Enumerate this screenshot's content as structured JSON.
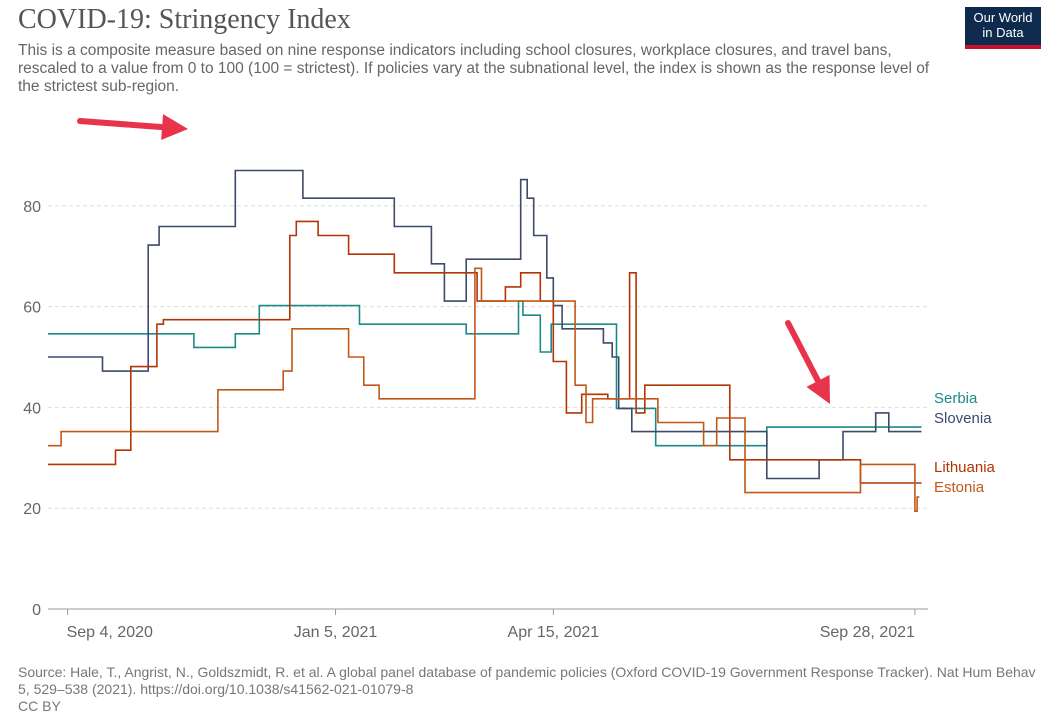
{
  "header": {
    "title": "COVID-19: Stringency Index",
    "subtitle": "This is a composite measure based on nine response indicators including school closures, workplace closures, and travel bans, rescaled to a value from 0 to 100 (100 = strictest). If policies vary at the subnational level, the index is shown as the response level of the strictest sub-region.",
    "logo_line1": "Our World",
    "logo_line2": "in Data"
  },
  "footer": {
    "source": "Source: Hale, T., Angrist, N., Goldszmidt, R. et al. A global panel database of pandemic policies (Oxford COVID-19 Government Response Tracker). Nat Hum Behav 5, 529–538 (2021). https://doi.org/10.1038/s41562-021-01079-8",
    "license": "CC BY"
  },
  "chart_data": {
    "type": "line",
    "title": "COVID-19: Stringency Index",
    "xlabel": "",
    "ylabel": "",
    "x_range": [
      "2020-08-26",
      "2021-10-04"
    ],
    "ylim": [
      0,
      100
    ],
    "y_ticks": [
      0,
      20,
      40,
      60,
      80
    ],
    "x_ticks": [
      {
        "date": "2020-09-04",
        "label": "Sep 4, 2020"
      },
      {
        "date": "2021-01-05",
        "label": "Jan 5, 2021"
      },
      {
        "date": "2021-04-15",
        "label": "Apr 15, 2021"
      },
      {
        "date": "2021-09-28",
        "label": "Sep 28, 2021"
      }
    ],
    "grid": true,
    "legend": "right, labels at line ends",
    "series": [
      {
        "name": "Serbia",
        "color": "#1c8a86",
        "points": [
          [
            "2020-08-26",
            54.6
          ],
          [
            "2020-11-01",
            54.6
          ],
          [
            "2020-11-01",
            51.9
          ],
          [
            "2020-11-20",
            51.9
          ],
          [
            "2020-11-20",
            54.6
          ],
          [
            "2020-12-01",
            54.6
          ],
          [
            "2020-12-01",
            60.2
          ],
          [
            "2021-01-16",
            60.2
          ],
          [
            "2021-01-16",
            56.5
          ],
          [
            "2021-03-06",
            56.5
          ],
          [
            "2021-03-06",
            54.6
          ],
          [
            "2021-03-30",
            54.6
          ],
          [
            "2021-03-30",
            61.1
          ],
          [
            "2021-04-01",
            61.1
          ],
          [
            "2021-04-01",
            58.3
          ],
          [
            "2021-04-09",
            58.3
          ],
          [
            "2021-04-09",
            51.0
          ],
          [
            "2021-04-14",
            51.0
          ],
          [
            "2021-04-14",
            56.5
          ],
          [
            "2021-05-14",
            56.5
          ],
          [
            "2021-05-14",
            39.8
          ],
          [
            "2021-06-01",
            39.8
          ],
          [
            "2021-06-01",
            32.4
          ],
          [
            "2021-07-22",
            32.4
          ],
          [
            "2021-07-22",
            36.1
          ],
          [
            "2021-10-01",
            36.1
          ]
        ]
      },
      {
        "name": "Slovenia",
        "color": "#3f4a6b",
        "points": [
          [
            "2020-08-26",
            50.0
          ],
          [
            "2020-09-20",
            50.0
          ],
          [
            "2020-09-20",
            47.2
          ],
          [
            "2020-10-11",
            47.2
          ],
          [
            "2020-10-11",
            72.2
          ],
          [
            "2020-10-16",
            72.2
          ],
          [
            "2020-10-16",
            75.9
          ],
          [
            "2020-11-20",
            75.9
          ],
          [
            "2020-11-20",
            87.0
          ],
          [
            "2020-12-21",
            87.0
          ],
          [
            "2020-12-21",
            81.5
          ],
          [
            "2021-02-01",
            81.5
          ],
          [
            "2021-02-01",
            75.9
          ],
          [
            "2021-02-18",
            75.9
          ],
          [
            "2021-02-18",
            68.5
          ],
          [
            "2021-02-24",
            68.5
          ],
          [
            "2021-02-24",
            61.1
          ],
          [
            "2021-03-06",
            61.1
          ],
          [
            "2021-03-06",
            69.4
          ],
          [
            "2021-03-31",
            69.4
          ],
          [
            "2021-03-31",
            85.2
          ],
          [
            "2021-04-03",
            85.2
          ],
          [
            "2021-04-03",
            81.5
          ],
          [
            "2021-04-06",
            81.5
          ],
          [
            "2021-04-06",
            74.1
          ],
          [
            "2021-04-12",
            74.1
          ],
          [
            "2021-04-12",
            65.7
          ],
          [
            "2021-04-15",
            65.7
          ],
          [
            "2021-04-15",
            60.2
          ],
          [
            "2021-04-19",
            60.2
          ],
          [
            "2021-04-19",
            55.6
          ],
          [
            "2021-05-08",
            55.6
          ],
          [
            "2021-05-08",
            52.8
          ],
          [
            "2021-05-12",
            52.8
          ],
          [
            "2021-05-12",
            50.0
          ],
          [
            "2021-05-15",
            50.0
          ],
          [
            "2021-05-15",
            39.8
          ],
          [
            "2021-05-21",
            39.8
          ],
          [
            "2021-05-21",
            35.2
          ],
          [
            "2021-07-22",
            35.2
          ],
          [
            "2021-07-22",
            25.9
          ],
          [
            "2021-08-15",
            25.9
          ],
          [
            "2021-08-15",
            29.6
          ],
          [
            "2021-08-26",
            29.6
          ],
          [
            "2021-08-26",
            35.2
          ],
          [
            "2021-09-10",
            35.2
          ],
          [
            "2021-09-10",
            38.9
          ],
          [
            "2021-09-16",
            38.9
          ],
          [
            "2021-09-16",
            35.2
          ],
          [
            "2021-10-01",
            35.2
          ]
        ]
      },
      {
        "name": "Lithuania",
        "color": "#b13507",
        "points": [
          [
            "2020-08-26",
            28.7
          ],
          [
            "2020-09-26",
            28.7
          ],
          [
            "2020-09-26",
            31.5
          ],
          [
            "2020-10-03",
            31.5
          ],
          [
            "2020-10-03",
            48.1
          ],
          [
            "2020-10-15",
            48.1
          ],
          [
            "2020-10-15",
            56.5
          ],
          [
            "2020-10-18",
            56.5
          ],
          [
            "2020-10-18",
            57.4
          ],
          [
            "2020-12-15",
            57.4
          ],
          [
            "2020-12-15",
            74.1
          ],
          [
            "2020-12-18",
            74.1
          ],
          [
            "2020-12-18",
            76.9
          ],
          [
            "2020-12-28",
            76.9
          ],
          [
            "2020-12-28",
            74.1
          ],
          [
            "2021-01-11",
            74.1
          ],
          [
            "2021-01-11",
            70.4
          ],
          [
            "2021-02-01",
            70.4
          ],
          [
            "2021-02-01",
            66.7
          ],
          [
            "2021-03-11",
            66.7
          ],
          [
            "2021-03-11",
            61.1
          ],
          [
            "2021-03-24",
            61.1
          ],
          [
            "2021-03-24",
            63.9
          ],
          [
            "2021-03-31",
            63.9
          ],
          [
            "2021-03-31",
            66.7
          ],
          [
            "2021-04-09",
            66.7
          ],
          [
            "2021-04-09",
            61.1
          ],
          [
            "2021-04-15",
            61.1
          ],
          [
            "2021-04-15",
            49.1
          ],
          [
            "2021-04-21",
            49.1
          ],
          [
            "2021-04-21",
            38.9
          ],
          [
            "2021-04-28",
            38.9
          ],
          [
            "2021-04-28",
            42.6
          ],
          [
            "2021-05-10",
            42.6
          ],
          [
            "2021-05-10",
            41.7
          ],
          [
            "2021-05-20",
            41.7
          ],
          [
            "2021-05-20",
            66.7
          ],
          [
            "2021-05-23",
            66.7
          ],
          [
            "2021-05-23",
            38.9
          ],
          [
            "2021-05-27",
            38.9
          ],
          [
            "2021-05-27",
            44.4
          ],
          [
            "2021-07-05",
            44.4
          ],
          [
            "2021-07-05",
            29.6
          ],
          [
            "2021-09-03",
            29.6
          ],
          [
            "2021-09-03",
            25.0
          ],
          [
            "2021-10-01",
            25.0
          ]
        ]
      },
      {
        "name": "Estonia",
        "color": "#c05917",
        "points": [
          [
            "2020-08-26",
            32.4
          ],
          [
            "2020-09-01",
            32.4
          ],
          [
            "2020-09-01",
            35.2
          ],
          [
            "2020-11-12",
            35.2
          ],
          [
            "2020-11-12",
            43.5
          ],
          [
            "2020-12-12",
            43.5
          ],
          [
            "2020-12-12",
            47.2
          ],
          [
            "2020-12-16",
            47.2
          ],
          [
            "2020-12-16",
            55.6
          ],
          [
            "2021-01-11",
            55.6
          ],
          [
            "2021-01-11",
            50.0
          ],
          [
            "2021-01-18",
            50.0
          ],
          [
            "2021-01-18",
            44.4
          ],
          [
            "2021-01-25",
            44.4
          ],
          [
            "2021-01-25",
            41.7
          ],
          [
            "2021-03-10",
            41.7
          ],
          [
            "2021-03-10",
            67.6
          ],
          [
            "2021-03-13",
            67.6
          ],
          [
            "2021-03-13",
            61.1
          ],
          [
            "2021-04-25",
            61.1
          ],
          [
            "2021-04-25",
            44.4
          ],
          [
            "2021-04-30",
            44.4
          ],
          [
            "2021-04-30",
            37.0
          ],
          [
            "2021-05-03",
            37.0
          ],
          [
            "2021-05-03",
            41.7
          ],
          [
            "2021-05-23",
            41.7
          ],
          [
            "2021-05-23",
            41.7
          ],
          [
            "2021-06-02",
            41.7
          ],
          [
            "2021-06-02",
            37.0
          ],
          [
            "2021-06-23",
            37.0
          ],
          [
            "2021-06-23",
            32.4
          ],
          [
            "2021-06-29",
            32.4
          ],
          [
            "2021-06-29",
            37.9
          ],
          [
            "2021-07-12",
            37.9
          ],
          [
            "2021-07-12",
            23.1
          ],
          [
            "2021-09-03",
            23.1
          ],
          [
            "2021-09-03",
            28.7
          ],
          [
            "2021-09-28",
            28.7
          ],
          [
            "2021-09-28",
            19.4
          ],
          [
            "2021-09-29",
            19.4
          ],
          [
            "2021-09-29",
            22.2
          ],
          [
            "2021-09-30",
            22.2
          ]
        ]
      }
    ],
    "annotations": [
      "red arrow pointing at Slovenia peak (Nov 2020)",
      "red arrow pointing at Serbia/Slovenia lines (Sep 2021)"
    ]
  }
}
